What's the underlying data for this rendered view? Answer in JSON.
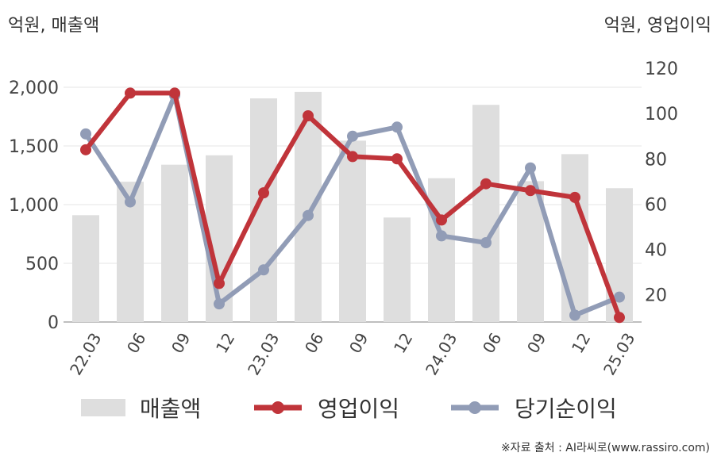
{
  "units": {
    "left": "억원, 매출액",
    "right": "억원, 영업이익"
  },
  "source": "※자료 출처 : AI라씨로(www.rassiro.com)",
  "legend": {
    "sales": "매출액",
    "op": "영업이익",
    "net": "당기순이익"
  },
  "colors": {
    "bar": "#dedede",
    "op": "#c0343a",
    "net": "#919cb6",
    "grid": "#e6e6e6",
    "axis": "#aaaaaa"
  },
  "chart_data": {
    "type": "bar+line",
    "categories": [
      "22.03",
      "06",
      "09",
      "12",
      "23.03",
      "06",
      "09",
      "12",
      "24.03",
      "06",
      "09",
      "12",
      "25.03"
    ],
    "y_left": {
      "ylim": [
        0,
        2000
      ],
      "ticks": [
        0,
        500,
        1000,
        1500,
        2000
      ],
      "tick_labels": [
        "0",
        "500",
        "1,000",
        "1,500",
        "2,000"
      ]
    },
    "y_right": {
      "ylim": [
        8,
        120
      ],
      "ticks": [
        20,
        40,
        60,
        80,
        100,
        120
      ],
      "tick_labels": [
        "20",
        "40",
        "60",
        "80",
        "100",
        "120"
      ]
    },
    "series": [
      {
        "name": "매출액",
        "kind": "bar",
        "axis": "left",
        "values": [
          910,
          1195,
          1340,
          1420,
          1905,
          1960,
          1545,
          890,
          1225,
          1850,
          1200,
          1430,
          1140
        ]
      },
      {
        "name": "영업이익",
        "kind": "line",
        "axis": "right",
        "values": [
          84,
          109,
          109,
          25,
          65,
          99,
          81,
          80,
          53,
          69,
          66,
          63,
          10
        ]
      },
      {
        "name": "당기순이익",
        "kind": "line",
        "axis": "right",
        "values": [
          91,
          61,
          108,
          16,
          31,
          55,
          90,
          94,
          46,
          43,
          76,
          11,
          19
        ]
      }
    ]
  }
}
